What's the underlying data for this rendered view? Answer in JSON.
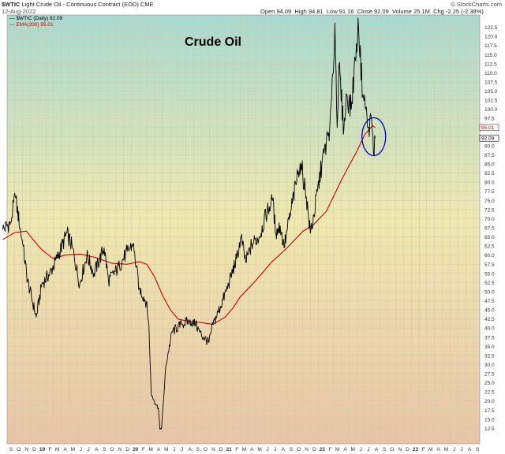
{
  "header": {
    "symbol": "$WTIC",
    "subtitle": "Light Crude Oil - Continuous Contract (EOD)",
    "exchange": "CME",
    "date": "12-Aug-2022",
    "source": "© StockCharts.com",
    "quote": {
      "open_label": "Open",
      "open": "94.09",
      "high_label": "High",
      "high": "94.81",
      "low_label": "Low",
      "low": "91.16",
      "close_label": "Close",
      "close": "92.09",
      "volume_label": "Volume",
      "volume": "25.1M",
      "chg_label": "Chg",
      "chg": "-2.25 (-2.38%)"
    }
  },
  "legend": {
    "price": "$WTIC (Daily) 92.09",
    "ema": "EMA(200) 95.01"
  },
  "colors": {
    "price": "#000000",
    "ema": "#cc0000",
    "circle": "#0000cc",
    "bg_top": "#a9d9d1",
    "bg_mid": "#efe8b0",
    "bg_bottom": "#e8c4a8"
  },
  "chart_data": {
    "type": "line",
    "title": "Crude Oil",
    "ylim": [
      10,
      125
    ],
    "y_ticks": [
      "122.5",
      "120.0",
      "117.5",
      "115.0",
      "112.5",
      "110.0",
      "107.5",
      "105.0",
      "102.5",
      "100.0",
      "97.5",
      "95.0",
      "92.5",
      "90.0",
      "87.5",
      "85.0",
      "82.5",
      "80.0",
      "77.5",
      "75.0",
      "72.5",
      "70.0",
      "67.5",
      "65.0",
      "62.5",
      "60.0",
      "57.5",
      "55.0",
      "52.5",
      "50.0",
      "47.5",
      "45.0",
      "42.5",
      "40.0",
      "37.5",
      "35.0",
      "32.5",
      "30.0",
      "27.5",
      "25.0",
      "22.5",
      "20.0",
      "17.5",
      "15.0",
      "12.5"
    ],
    "x_labels": [
      "S",
      "O",
      "N",
      "D",
      "19",
      "F",
      "M",
      "A",
      "M",
      "J",
      "J",
      "A",
      "S",
      "O",
      "N",
      "D",
      "20",
      "F",
      "M",
      "A",
      "M",
      "J",
      "J",
      "A",
      "S",
      "O",
      "N",
      "D",
      "21",
      "F",
      "M",
      "A",
      "M",
      "J",
      "J",
      "A",
      "S",
      "O",
      "N",
      "D",
      "22",
      "F",
      "M",
      "A",
      "M",
      "J",
      "J",
      "A",
      "S",
      "O",
      "N",
      "D",
      "23",
      "F",
      "M",
      "A",
      "M",
      "J",
      "J",
      "A",
      "S"
    ],
    "last_price_tag": "92.09",
    "last_ema_tag": "95.01",
    "series": [
      {
        "name": "$WTIC (Daily)",
        "x": [
          "2018-08-15",
          "2018-09-15",
          "2018-10-03",
          "2018-11-01",
          "2018-11-20",
          "2018-12-24",
          "2019-01-15",
          "2019-02-15",
          "2019-03-15",
          "2019-04-23",
          "2019-05-15",
          "2019-06-12",
          "2019-07-10",
          "2019-08-07",
          "2019-09-16",
          "2019-10-03",
          "2019-11-15",
          "2019-12-15",
          "2020-01-07",
          "2020-01-31",
          "2020-02-28",
          "2020-03-09",
          "2020-03-18",
          "2020-03-30",
          "2020-04-15",
          "2020-04-21",
          "2020-04-28",
          "2020-05-15",
          "2020-06-08",
          "2020-07-15",
          "2020-08-15",
          "2020-09-08",
          "2020-10-01",
          "2020-10-30",
          "2020-11-15",
          "2020-12-15",
          "2021-01-15",
          "2021-02-15",
          "2021-03-05",
          "2021-03-23",
          "2021-04-15",
          "2021-05-15",
          "2021-06-15",
          "2021-07-06",
          "2021-07-19",
          "2021-08-05",
          "2021-08-20",
          "2021-09-15",
          "2021-10-15",
          "2021-10-26",
          "2021-11-15",
          "2021-12-01",
          "2021-12-15",
          "2022-01-15",
          "2022-02-15",
          "2022-03-01",
          "2022-03-07",
          "2022-03-16",
          "2022-03-23",
          "2022-04-11",
          "2022-04-22",
          "2022-05-10",
          "2022-05-30",
          "2022-06-08",
          "2022-06-24",
          "2022-07-06",
          "2022-07-15",
          "2022-07-29",
          "2022-08-05",
          "2022-08-12"
        ],
        "y": [
          67,
          69,
          76,
          63,
          53,
          43,
          52,
          55,
          59,
          66,
          62,
          52,
          60,
          55,
          62,
          53,
          57,
          61,
          63,
          51,
          47,
          41,
          22,
          20,
          18,
          12.3,
          13,
          30,
          39,
          41,
          42,
          41,
          38,
          36,
          41,
          46,
          52,
          59,
          65,
          58,
          63,
          65,
          72,
          75,
          66,
          68,
          62,
          72,
          83,
          85,
          76,
          66,
          71,
          85,
          95,
          110,
          123.7,
          95,
          112,
          94,
          104,
          100,
          118,
          122,
          104,
          100,
          95,
          97,
          88,
          92.09
        ]
      },
      {
        "name": "EMA(200)",
        "x": [
          "2018-08-15",
          "2018-10-01",
          "2018-11-15",
          "2018-12-15",
          "2019-01-15",
          "2019-03-01",
          "2019-04-15",
          "2019-06-15",
          "2019-08-15",
          "2019-10-15",
          "2019-12-15",
          "2020-02-01",
          "2020-03-01",
          "2020-04-01",
          "2020-05-01",
          "2020-06-01",
          "2020-07-01",
          "2020-08-01",
          "2020-10-01",
          "2020-11-15",
          "2021-01-01",
          "2021-02-01",
          "2021-03-01",
          "2021-05-01",
          "2021-07-01",
          "2021-09-01",
          "2021-11-01",
          "2021-12-15",
          "2022-02-01",
          "2022-03-01",
          "2022-04-01",
          "2022-05-01",
          "2022-06-01",
          "2022-07-01",
          "2022-08-01",
          "2022-08-12"
        ],
        "y": [
          64.3,
          66.2,
          66.6,
          64,
          61.5,
          59,
          60,
          60.3,
          59.3,
          57.8,
          57.5,
          58.2,
          57.5,
          54,
          49,
          45,
          42.5,
          42,
          41.5,
          41,
          43,
          45.5,
          48.5,
          53,
          58,
          62,
          66.5,
          68.5,
          72,
          76,
          80.5,
          84.5,
          88.5,
          93,
          95.5,
          95.01
        ]
      }
    ],
    "annotations": [
      {
        "type": "ellipse",
        "x": "2022-07-28",
        "y": 92.5
      }
    ]
  }
}
